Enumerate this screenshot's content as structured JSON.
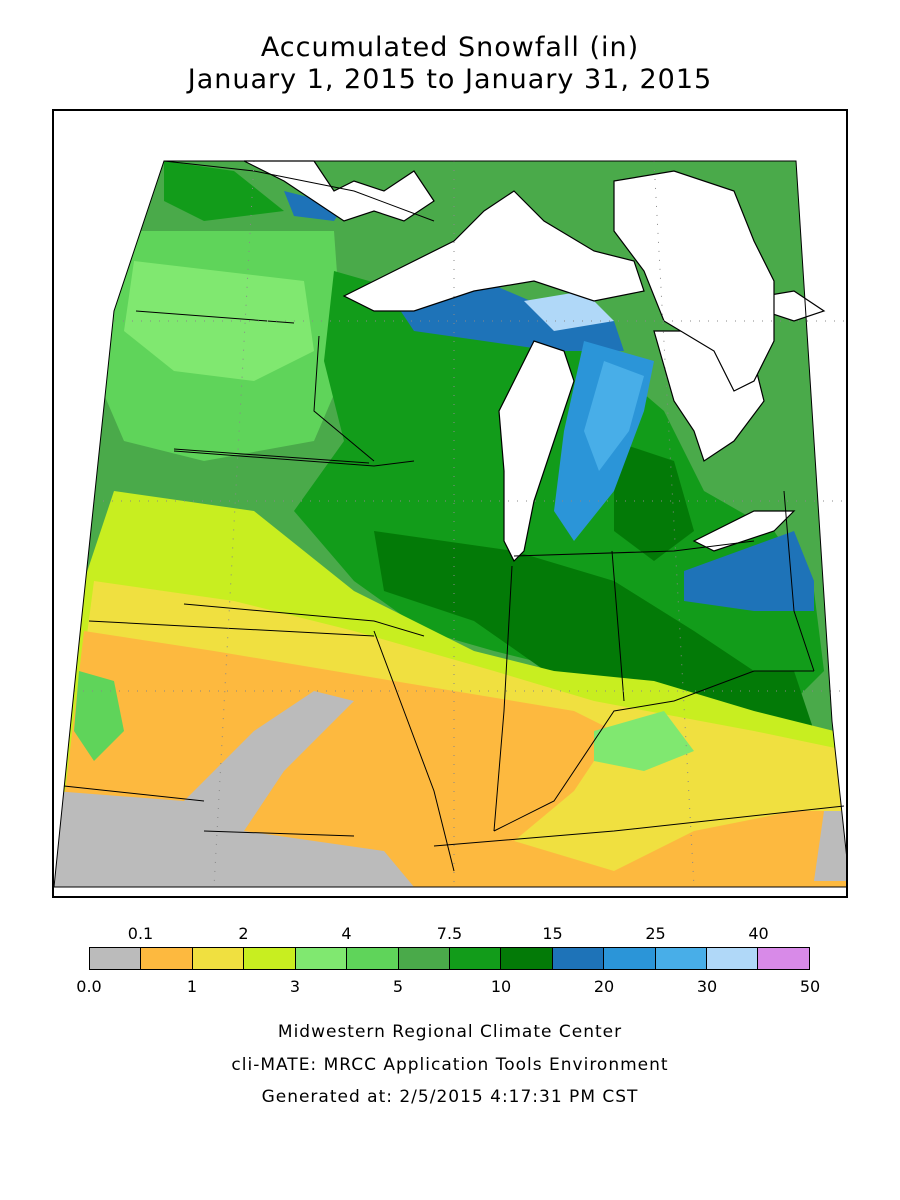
{
  "title": {
    "line1": "Accumulated Snowfall (in)",
    "line2": "January 1, 2015 to January 31, 2015"
  },
  "legend": {
    "unit": "in",
    "bins": [
      {
        "min": 0.0,
        "max": 0.1,
        "color": "#bbbbbb"
      },
      {
        "min": 0.1,
        "max": 1,
        "color": "#fdb93f"
      },
      {
        "min": 1,
        "max": 2,
        "color": "#f0e040"
      },
      {
        "min": 2,
        "max": 3,
        "color": "#c8ee20"
      },
      {
        "min": 3,
        "max": 4,
        "color": "#80e870"
      },
      {
        "min": 4,
        "max": 5,
        "color": "#5fd45a"
      },
      {
        "min": 5,
        "max": 7.5,
        "color": "#4aaa4a"
      },
      {
        "min": 7.5,
        "max": 10,
        "color": "#129c1a"
      },
      {
        "min": 10,
        "max": 15,
        "color": "#037a07"
      },
      {
        "min": 15,
        "max": 20,
        "color": "#1e73b8"
      },
      {
        "min": 20,
        "max": 25,
        "color": "#2b95d8"
      },
      {
        "min": 25,
        "max": 30,
        "color": "#48aee8"
      },
      {
        "min": 30,
        "max": 40,
        "color": "#b0d8f8"
      },
      {
        "min": 40,
        "max": 50,
        "color": "#d88ae8"
      }
    ],
    "top_labels": [
      "0.1",
      "2",
      "4",
      "7.5",
      "15",
      "25",
      "40"
    ],
    "bottom_labels": [
      "0.0",
      "1",
      "3",
      "5",
      "10",
      "20",
      "30",
      "50"
    ]
  },
  "footer": {
    "line1": "Midwestern Regional Climate Center",
    "line2": "cli-MATE: MRCC Application Tools Environment",
    "line3": "Generated at: 2/5/2015 4:17:31 PM CST"
  }
}
